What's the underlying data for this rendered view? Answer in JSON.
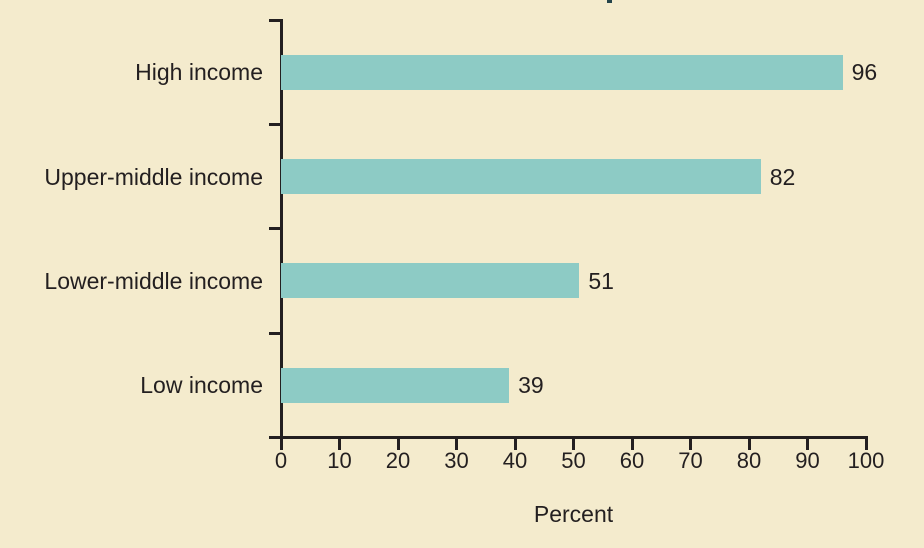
{
  "chart_data": {
    "type": "bar",
    "orientation": "horizontal",
    "categories": [
      "High income",
      "Upper-middle income",
      "Lower-middle income",
      "Low income"
    ],
    "values": [
      96,
      82,
      51,
      39
    ],
    "value_labels": [
      "96",
      "82",
      "51",
      "39"
    ],
    "xlabel": "Percent",
    "xlim": [
      0,
      100
    ],
    "xticks": [
      0,
      10,
      20,
      30,
      40,
      50,
      60,
      70,
      80,
      90,
      100
    ],
    "grid": "off",
    "legend": "none",
    "colors": {
      "background": "#f4ebcd",
      "bar": "#8dcbc5",
      "axis": "#231f20",
      "text": "#231f20"
    }
  }
}
